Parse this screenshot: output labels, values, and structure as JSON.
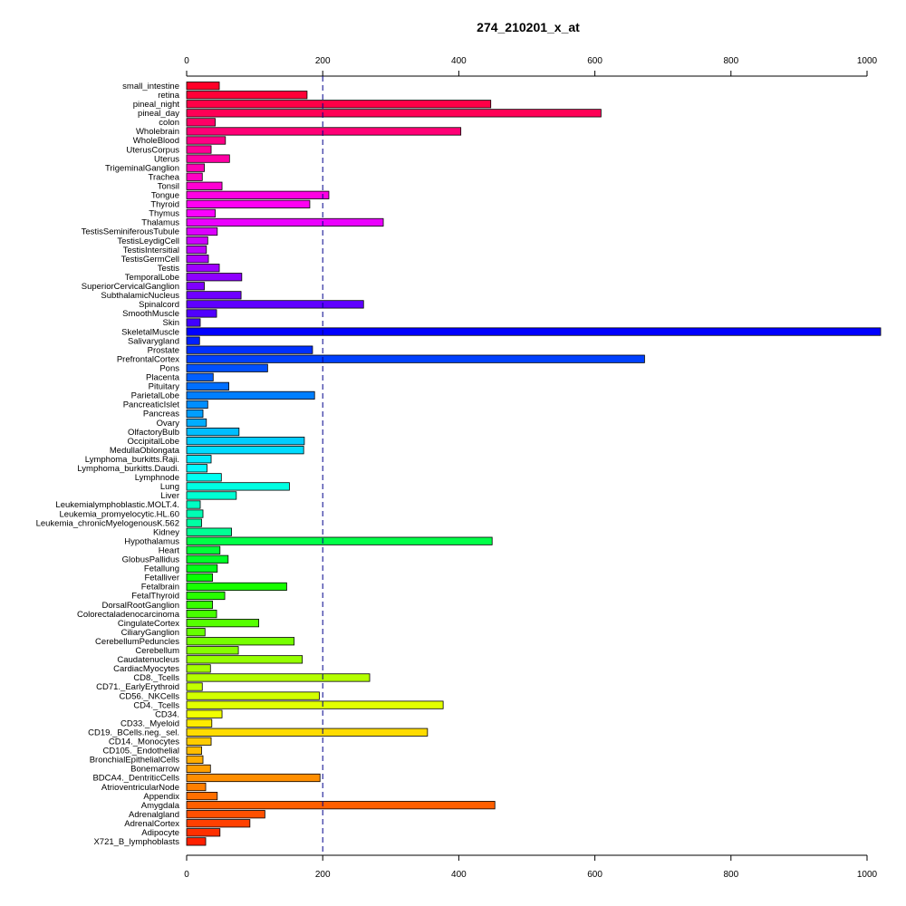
{
  "chart_data": {
    "type": "bar",
    "orientation": "horizontal",
    "title": "274_210201_x_at",
    "xlabel": "",
    "ylabel": "",
    "xlim": [
      0,
      1000
    ],
    "ticks": [
      0,
      200,
      400,
      600,
      800,
      1000
    ],
    "tick_labels": [
      "0",
      "200",
      "400",
      "600",
      "800",
      "1000"
    ],
    "reference_line": 200,
    "grid": false,
    "legend": "none",
    "categories": [
      "small_intestine",
      "retina",
      "pineal_night",
      "pineal_day",
      "colon",
      "Wholebrain",
      "WholeBlood",
      "UterusCorpus",
      "Uterus",
      "TrigeminalGanglion",
      "Trachea",
      "Tonsil",
      "Tongue",
      "Thyroid",
      "Thymus",
      "Thalamus",
      "TestisSeminiferousTubule",
      "TestisLeydigCell",
      "TestisIntersitial",
      "TestisGermCell",
      "Testis",
      "TemporalLobe",
      "SuperiorCervicalGanglion",
      "SubthalamicNucleus",
      "Spinalcord",
      "SmoothMuscle",
      "Skin",
      "SkeletalMuscle",
      "Salivarygland",
      "Prostate",
      "PrefrontalCortex",
      "Pons",
      "Placenta",
      "Pituitary",
      "ParietalLobe",
      "PancreaticIslet",
      "Pancreas",
      "Ovary",
      "OlfactoryBulb",
      "OccipitalLobe",
      "MedullaOblongata",
      "Lymphoma_burkitts.Raji.",
      "Lymphoma_burkitts.Daudi.",
      "Lymphnode",
      "Lung",
      "Liver",
      "Leukemialymphoblastic.MOLT.4.",
      "Leukemia_promyelocytic.HL.60",
      "Leukemia_chronicMyelogenousK.562",
      "Kidney",
      "Hypothalamus",
      "Heart",
      "GlobusPallidus",
      "Fetallung",
      "Fetalliver",
      "Fetalbrain",
      "FetalThyroid",
      "DorsalRootGanglion",
      "Colorectaladenocarcinoma",
      "CingulateCortex",
      "CiliaryGanglion",
      "CerebellumPeduncles",
      "Cerebellum",
      "Caudatenucleus",
      "CardiacMyocytes",
      "CD8._Tcells",
      "CD71._EarlyErythroid",
      "CD56._NKCells",
      "CD4._Tcells",
      "CD34.",
      "CD33._Myeloid",
      "CD19._BCells.neg._sel.",
      "CD14._Monocytes",
      "CD105._Endothelial",
      "BronchialEpithelialCells",
      "Bonemarrow",
      "BDCA4._DentriticCells",
      "AtrioventricularNode",
      "Appendix",
      "Amygdala",
      "Adrenalgland",
      "AdrenalCortex",
      "Adipocyte",
      "X721_B_lymphoblasts"
    ],
    "values": [
      48,
      177,
      447,
      609,
      42,
      403,
      57,
      36,
      63,
      26,
      23,
      52,
      209,
      181,
      42,
      289,
      45,
      31,
      29,
      32,
      48,
      81,
      26,
      80,
      260,
      44,
      20,
      1020,
      19,
      185,
      673,
      119,
      39,
      62,
      188,
      31,
      24,
      29,
      77,
      173,
      172,
      36,
      30,
      51,
      151,
      73,
      20,
      24,
      22,
      66,
      449,
      49,
      61,
      45,
      38,
      147,
      56,
      38,
      44,
      106,
      27,
      158,
      76,
      170,
      35,
      269,
      23,
      195,
      377,
      52,
      37,
      354,
      36,
      22,
      24,
      35,
      196,
      28,
      45,
      453,
      115,
      93,
      49,
      28
    ],
    "colors": [
      "#FF0027",
      "#FF0037",
      "#FF0047",
      "#FF0056",
      "#FF0066",
      "#FF0076",
      "#FF0085",
      "#FF0095",
      "#FF00A4",
      "#FF00B4",
      "#FF00C3",
      "#FF00D3",
      "#FF00E2",
      "#FF00F2",
      "#FB00FF",
      "#EB00FF",
      "#DC00FF",
      "#CC00FF",
      "#BD00FF",
      "#AD00FF",
      "#9E00FF",
      "#8E00FF",
      "#7F00FF",
      "#6F00FF",
      "#5F00FF",
      "#5000FF",
      "#4000FF",
      "#0000FF",
      "#0020FF",
      "#0030FF",
      "#0040FF",
      "#0050FF",
      "#005FFF",
      "#006FFF",
      "#007FFF",
      "#008EFF",
      "#009EFF",
      "#00ADFF",
      "#00BDFF",
      "#00CCFF",
      "#00DCFF",
      "#00EBFF",
      "#00FBFF",
      "#00FFF2",
      "#00FFE2",
      "#00FFD3",
      "#00FFC3",
      "#00FFB4",
      "#00FFA4",
      "#00FF95",
      "#00FF47",
      "#00FF37",
      "#00FF27",
      "#00FF18",
      "#08FF00",
      "#18FF00",
      "#27FF00",
      "#37FF00",
      "#47FF00",
      "#56FF00",
      "#66FF00",
      "#76FF00",
      "#85FF00",
      "#95FF00",
      "#A4FF00",
      "#B4FF00",
      "#C3FF00",
      "#D3FF00",
      "#E2FF00",
      "#F2FF00",
      "#FFEB00",
      "#FFDC00",
      "#FFCC00",
      "#FFBD00",
      "#FFAD00",
      "#FF9E00",
      "#FF8E00",
      "#FF7F00",
      "#FF6F00",
      "#FF5F00",
      "#FF5000",
      "#FF4000",
      "#FF3000",
      "#FF2000"
    ]
  }
}
